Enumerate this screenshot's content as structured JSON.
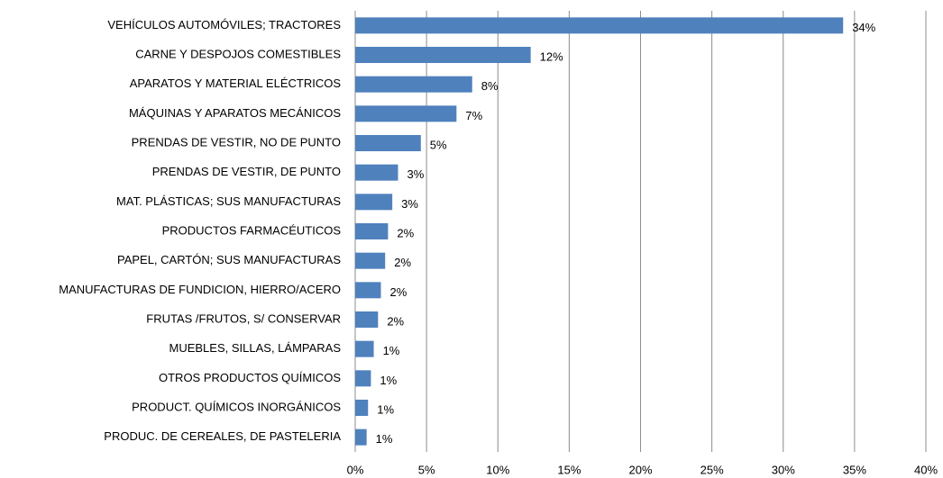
{
  "chart_data": {
    "type": "bar",
    "orientation": "horizontal",
    "categories": [
      "VEHÍCULOS AUTOMÓVILES;  TRACTORES",
      "CARNE Y DESPOJOS COMESTIBLES",
      "APARATOS Y MATERIAL ELÉCTRICOS",
      "MÁQUINAS Y APARATOS MECÁNICOS",
      "PRENDAS DE VESTIR,  NO DE PUNTO",
      "PRENDAS DE VESTIR,  DE PUNTO",
      "MAT. PLÁSTICAS; SUS MANUFACTURAS",
      "PRODUCTOS FARMACÉUTICOS",
      "PAPEL, CARTÓN;  SUS MANUFACTURAS",
      "MANUFACTURAS DE FUNDICION,  HIERRO/ACERO",
      "FRUTAS /FRUTOS,  S/ CONSERVAR",
      "MUEBLES, SILLAS, LÁMPARAS",
      "OTROS PRODUCTOS QUÍMICOS",
      "PRODUCT. QUÍMICOS INORGÁNICOS",
      "PRODUC. DE CEREALES,  DE PASTELERIA"
    ],
    "values": [
      34.2,
      12.3,
      8.2,
      7.1,
      4.6,
      3.0,
      2.6,
      2.3,
      2.1,
      1.8,
      1.6,
      1.3,
      1.1,
      0.9,
      0.8
    ],
    "value_labels": [
      "34%",
      "12%",
      "8%",
      "7%",
      "5%",
      "3%",
      "3%",
      "2%",
      "2%",
      "2%",
      "2%",
      "1%",
      "1%",
      "1%",
      "1%"
    ],
    "color": "#4f81bd",
    "xlim": [
      0,
      40
    ],
    "xticks": [
      {
        "value": 0,
        "label": "0%"
      },
      {
        "value": 5,
        "label": "5%"
      },
      {
        "value": 10,
        "label": "10%"
      },
      {
        "value": 15,
        "label": "15%"
      },
      {
        "value": 20,
        "label": "20%"
      },
      {
        "value": 25,
        "label": "25%"
      },
      {
        "value": 30,
        "label": "30%"
      },
      {
        "value": 35,
        "label": "35%"
      },
      {
        "value": 40,
        "label": "40%"
      }
    ],
    "grid": true
  }
}
